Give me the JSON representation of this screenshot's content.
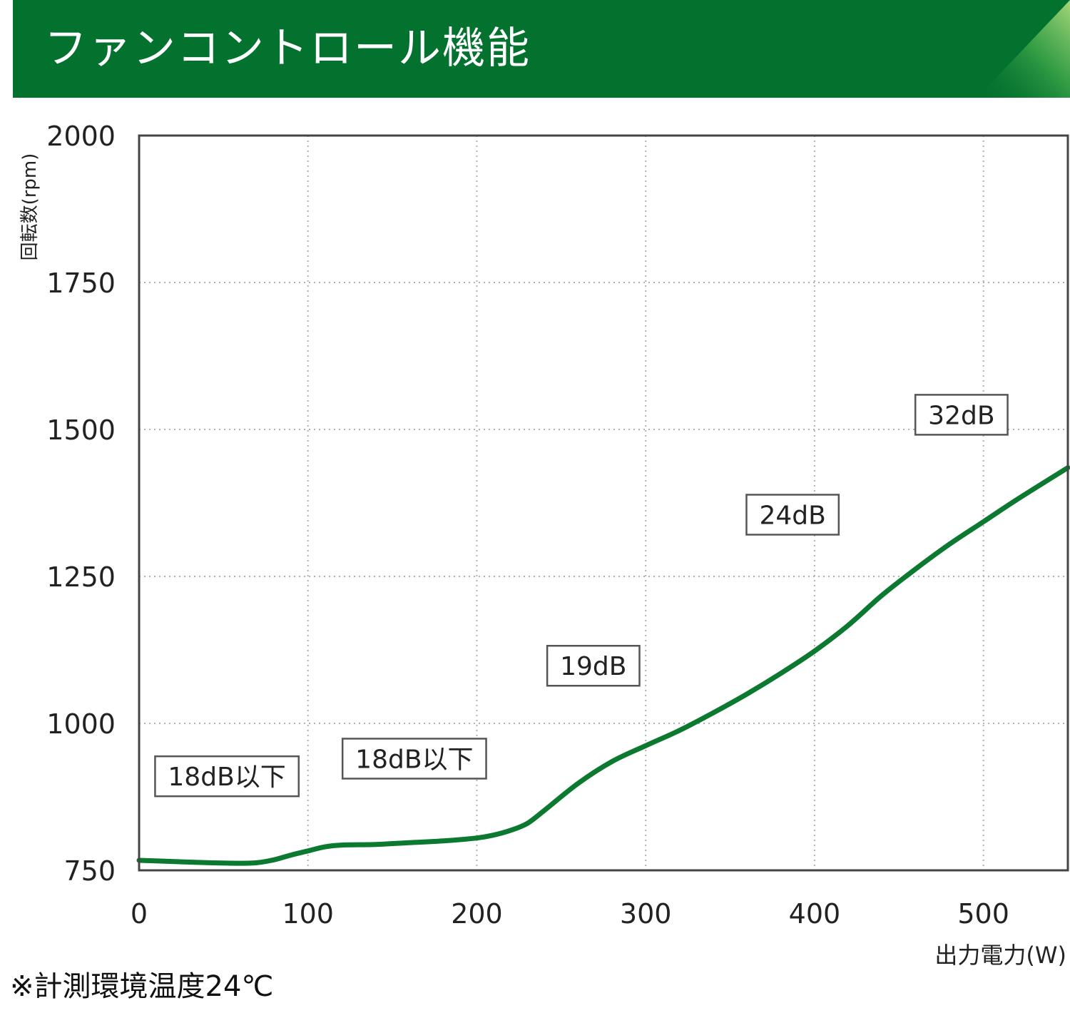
{
  "header": {
    "title": "ファンコントロール機能",
    "bg_color": "#03722f"
  },
  "footnote": "※計測環境温度24℃",
  "chart_data": {
    "type": "line",
    "title": "",
    "xlabel": "出力電力(W)",
    "ylabel": "回転数(rpm)",
    "xlim": [
      0,
      550
    ],
    "ylim": [
      750,
      2000
    ],
    "x_ticks": [
      0,
      100,
      200,
      300,
      400,
      500
    ],
    "y_ticks": [
      750,
      1000,
      1250,
      1500,
      1750,
      2000
    ],
    "grid": true,
    "series": [
      {
        "color": "#0b7a30",
        "x": [
          0,
          20,
          40,
          60,
          70,
          80,
          90,
          100,
          110,
          120,
          140,
          160,
          180,
          200,
          210,
          220,
          230,
          240,
          260,
          280,
          300,
          320,
          340,
          360,
          380,
          400,
          420,
          440,
          460,
          480,
          500,
          520,
          550
        ],
        "y": [
          767,
          765,
          763,
          762,
          763,
          768,
          776,
          783,
          790,
          793,
          794,
          797,
          800,
          805,
          810,
          818,
          830,
          852,
          898,
          935,
          962,
          988,
          1018,
          1050,
          1085,
          1123,
          1167,
          1218,
          1263,
          1305,
          1343,
          1381,
          1435
        ]
      }
    ],
    "annotations": [
      {
        "text": "18dB以下",
        "x": 52,
        "y": 910
      },
      {
        "text": "18dB以下",
        "x": 163,
        "y": 940
      },
      {
        "text": "19dB",
        "x": 269,
        "y": 1098
      },
      {
        "text": "24dB",
        "x": 387,
        "y": 1355
      },
      {
        "text": "32dB",
        "x": 487,
        "y": 1525
      }
    ]
  }
}
